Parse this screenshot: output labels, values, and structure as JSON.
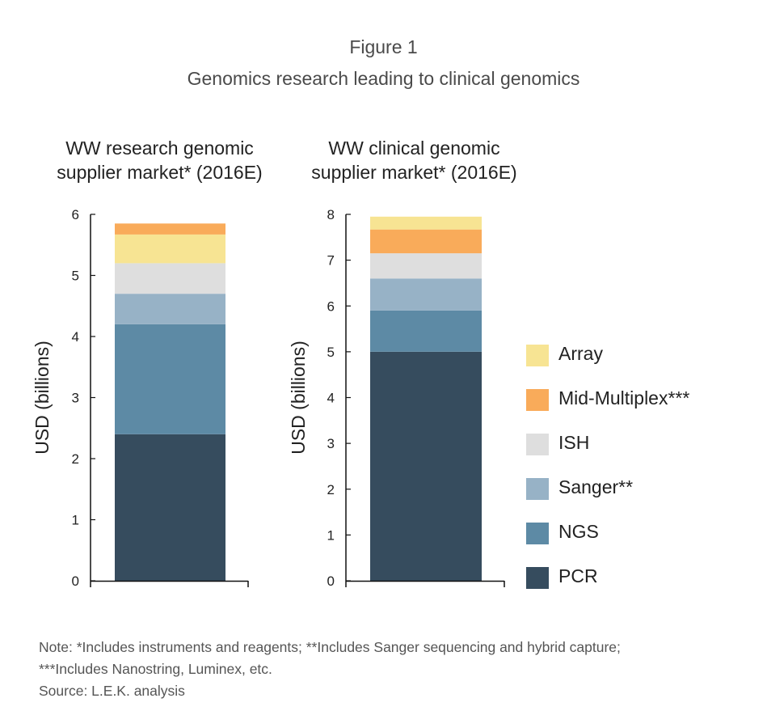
{
  "figure": {
    "label": "Figure 1",
    "subtitle": "Genomics research leading to clinical genomics"
  },
  "colors": {
    "Array": "#f7e493",
    "Mid-Multiplex***": "#f9ab5a",
    "ISH": "#dedede",
    "Sanger**": "#97b2c6",
    "NGS": "#5d8aa5",
    "PCR": "#364c5e"
  },
  "legend": [
    {
      "label": "Array",
      "color": "#f7e493"
    },
    {
      "label": "Mid-Multiplex***",
      "color": "#f9ab5a"
    },
    {
      "label": "ISH",
      "color": "#dedede"
    },
    {
      "label": "Sanger**",
      "color": "#97b2c6"
    },
    {
      "label": "NGS",
      "color": "#5d8aa5"
    },
    {
      "label": "PCR",
      "color": "#364c5e"
    }
  ],
  "notes": [
    "Note: *Includes instruments and reagents; **Includes Sanger sequencing and hybrid capture;",
    "***Includes Nanostring, Luminex, etc.",
    "Source: L.E.K. analysis"
  ],
  "chart_data": [
    {
      "type": "bar",
      "stacked": true,
      "title_line1": "WW research genomic",
      "title_line2": "supplier market* (2016E)",
      "ylabel": "USD (billions)",
      "ylim": [
        0,
        6
      ],
      "yticks": [
        "0",
        "1",
        "2",
        "3",
        "4",
        "5",
        "6"
      ],
      "series": [
        {
          "name": "PCR",
          "values": [
            2.4
          ]
        },
        {
          "name": "NGS",
          "values": [
            1.8
          ]
        },
        {
          "name": "Sanger**",
          "values": [
            0.5
          ]
        },
        {
          "name": "ISH",
          "values": [
            0.5
          ]
        },
        {
          "name": "Array",
          "values": [
            0.47
          ]
        },
        {
          "name": "Mid-Multiplex***",
          "values": [
            0.18
          ]
        }
      ]
    },
    {
      "type": "bar",
      "stacked": true,
      "title_line1": "WW clinical genomic",
      "title_line2": "supplier market* (2016E)",
      "ylabel": "USD (billions)",
      "ylim": [
        0,
        8
      ],
      "yticks": [
        "0",
        "1",
        "2",
        "3",
        "4",
        "5",
        "6",
        "7",
        "8"
      ],
      "series": [
        {
          "name": "PCR",
          "values": [
            5.0
          ]
        },
        {
          "name": "NGS",
          "values": [
            0.9
          ]
        },
        {
          "name": "Sanger**",
          "values": [
            0.7
          ]
        },
        {
          "name": "ISH",
          "values": [
            0.55
          ]
        },
        {
          "name": "Mid-Multiplex***",
          "values": [
            0.52
          ]
        },
        {
          "name": "Array",
          "values": [
            0.28
          ]
        }
      ]
    }
  ]
}
